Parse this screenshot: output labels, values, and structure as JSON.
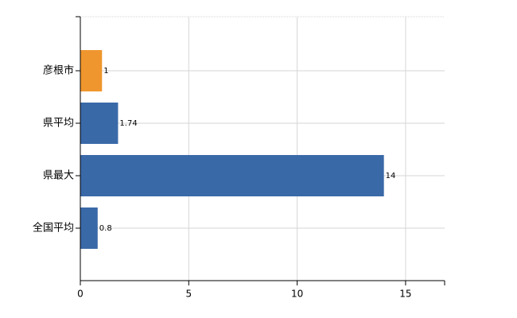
{
  "chart_data": {
    "type": "bar",
    "orientation": "horizontal",
    "categories": [
      "彦根市",
      "県平均",
      "県最大",
      "全国平均"
    ],
    "values": [
      1,
      1.74,
      14,
      0.8
    ],
    "colors": [
      "#f0962e",
      "#3a69a8",
      "#3a69a8",
      "#3a69a8"
    ],
    "xlim": [
      0,
      16.8
    ],
    "xticks": [
      0,
      5,
      10,
      15
    ],
    "grid": true
  }
}
